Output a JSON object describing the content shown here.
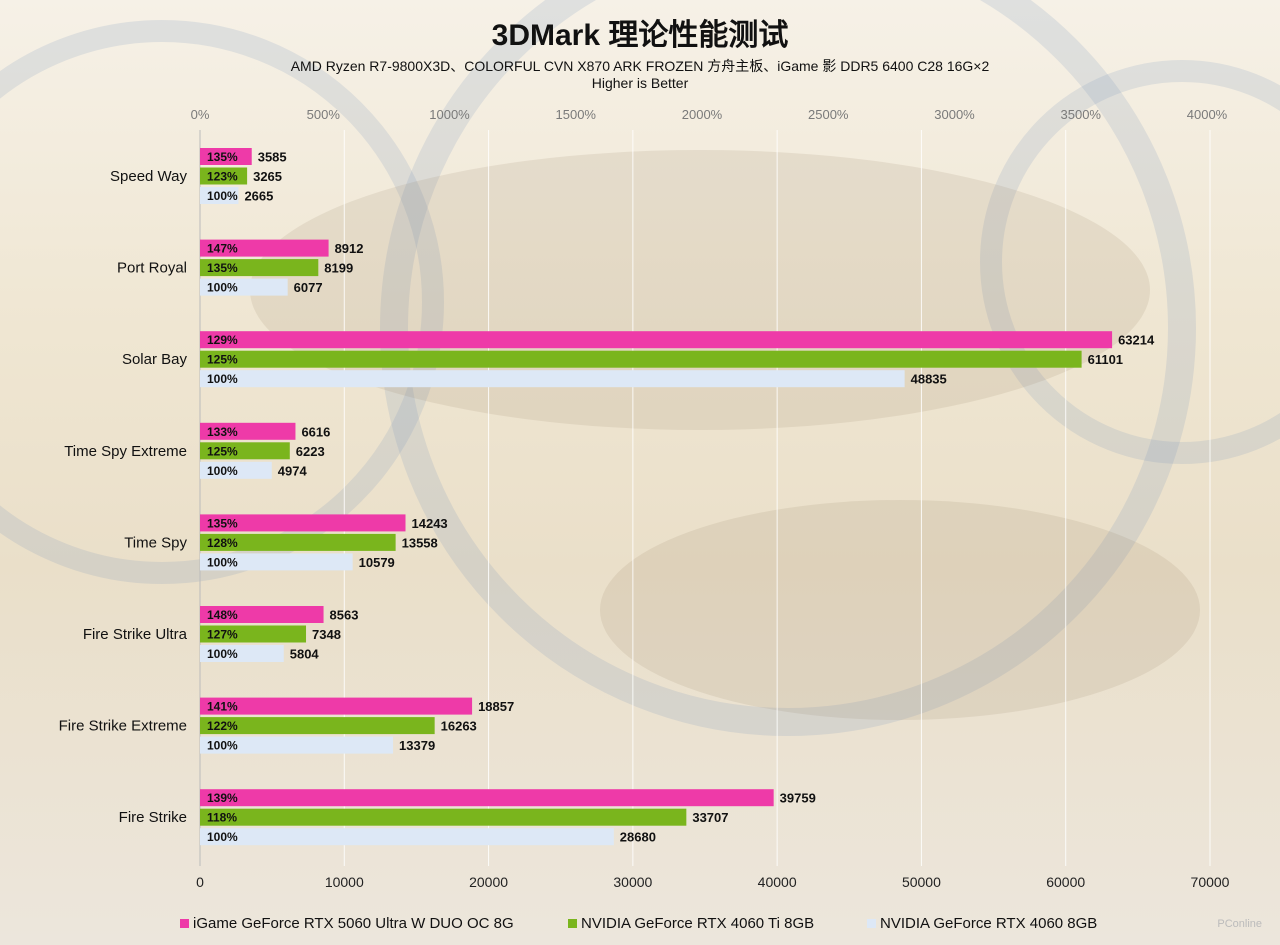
{
  "chart_data": {
    "type": "bar",
    "orientation": "horizontal",
    "title": "3DMark 理论性能测试",
    "subtitle": "AMD Ryzen R7-9800X3D、COLORFUL CVN X870 ARK FROZEN 方舟主板、iGame 影 DDR5 6400 C28 16G×2",
    "subtitle2": "Higher is Better",
    "categories": [
      "Speed Way",
      "Port Royal",
      "Solar Bay",
      "Time Spy Extreme",
      "Time Spy",
      "Fire Strike Ultra",
      "Fire Strike Extreme",
      "Fire Strike"
    ],
    "series": [
      {
        "name": "iGame GeForce RTX 5060 Ultra W DUO OC 8G",
        "color": "#ee3aa8",
        "values": [
          3585,
          8912,
          63214,
          6616,
          14243,
          8563,
          18857,
          39759
        ],
        "percent_labels": [
          "135%",
          "147%",
          "129%",
          "133%",
          "135%",
          "148%",
          "141%",
          "139%"
        ]
      },
      {
        "name": "NVIDIA GeForce RTX 4060 Ti 8GB",
        "color": "#7ab51d",
        "values": [
          3265,
          8199,
          61101,
          6223,
          13558,
          7348,
          16263,
          33707
        ],
        "percent_labels": [
          "123%",
          "135%",
          "125%",
          "125%",
          "128%",
          "127%",
          "122%",
          "118%"
        ]
      },
      {
        "name": "NVIDIA GeForce RTX 4060 8GB",
        "color": "#dde8f6",
        "values": [
          2665,
          6077,
          48835,
          4974,
          10579,
          5804,
          13379,
          28680
        ],
        "percent_labels": [
          "100%",
          "100%",
          "100%",
          "100%",
          "100%",
          "100%",
          "100%",
          "100%"
        ]
      }
    ],
    "x_bottom": {
      "range": [
        0,
        70000
      ],
      "ticks": [
        0,
        10000,
        20000,
        30000,
        40000,
        50000,
        60000,
        70000
      ]
    },
    "x_top": {
      "range": [
        0,
        4000
      ],
      "ticks": [
        "0%",
        "500%",
        "1000%",
        "1500%",
        "2000%",
        "2500%",
        "3000%",
        "3500%",
        "4000%"
      ]
    },
    "grid": true,
    "legend_position": "bottom"
  },
  "watermark": "PConline"
}
